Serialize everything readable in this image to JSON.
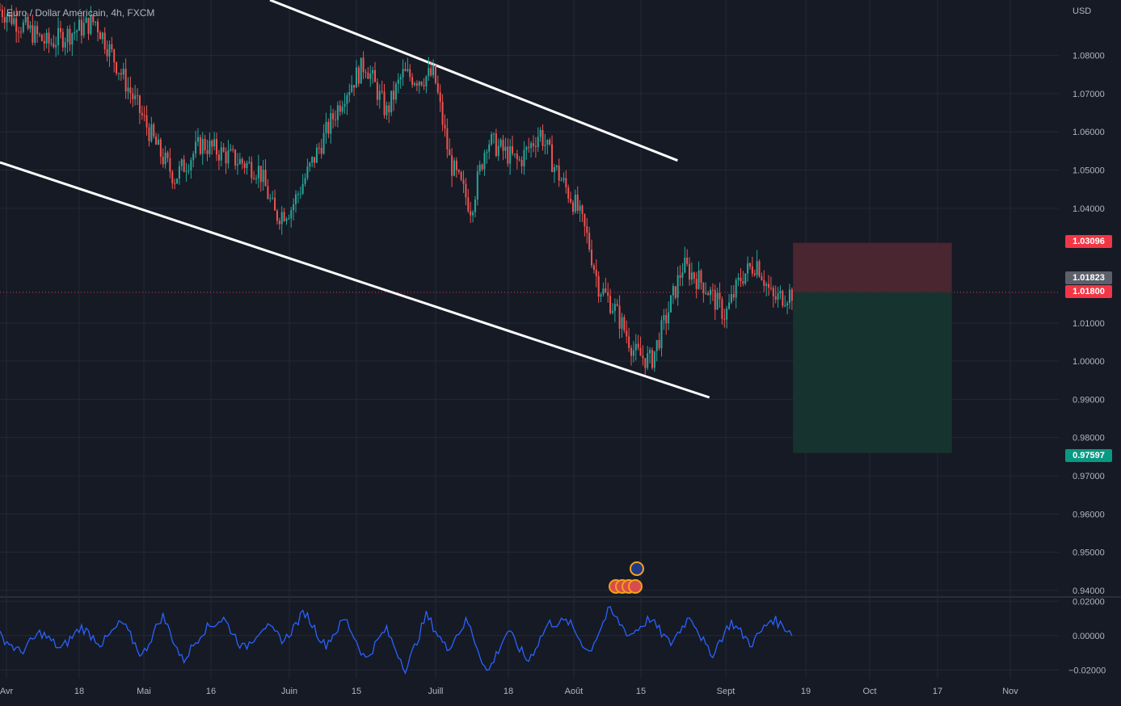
{
  "header": {
    "symbol": "Euro / Dollar Américain, 4h, FXCM",
    "currency": "USD"
  },
  "colors": {
    "background": "#161a25",
    "grid": "#232838",
    "up_candle": "#26a69a",
    "down_candle": "#ef5350",
    "trendline": "#ffffff",
    "stop_zone": "#4a2630",
    "target_zone": "#17332f",
    "oscillator": "#2962ff",
    "stop_label": "#f23645",
    "target_label": "#089981",
    "current_label": "#5d606b",
    "entry_label": "#f23645"
  },
  "price_axis": {
    "ticks": [
      "1.08000",
      "1.07000",
      "1.06000",
      "1.05000",
      "1.04000",
      "1.01000",
      "1.00000",
      "0.99000",
      "0.98000",
      "0.97000",
      "0.96000",
      "0.95000",
      "0.94000"
    ],
    "tick_values": [
      1.08,
      1.07,
      1.06,
      1.05,
      1.04,
      1.01,
      1.0,
      0.99,
      0.98,
      0.97,
      0.96,
      0.95,
      0.94
    ],
    "range": [
      0.9385,
      1.0945
    ]
  },
  "labels": {
    "stop": "1.03096",
    "current": "1.01823",
    "entry": "1.01800",
    "target": "0.97597"
  },
  "oscillator_axis": {
    "ticks": [
      "0.02000",
      "0.00000",
      "−0.02000"
    ],
    "tick_values": [
      0.02,
      0.0,
      -0.02
    ],
    "range": [
      -0.025,
      0.022
    ]
  },
  "time_axis": {
    "ticks": [
      "Avr",
      "18",
      "Mai",
      "16",
      "Juin",
      "15",
      "Juill",
      "18",
      "Août",
      "15",
      "Sept",
      "19",
      "Oct",
      "17",
      "Nov"
    ]
  },
  "chart_data": {
    "type": "candlestick",
    "title": "Euro / Dollar Américain, 4h, FXCM",
    "x_range": [
      "Avr",
      "Nov"
    ],
    "y_range": [
      0.9385,
      1.0945
    ],
    "price_path": [
      {
        "x": 0.0,
        "y": 1.092
      },
      {
        "x": 0.045,
        "y": 1.083
      },
      {
        "x": 0.09,
        "y": 1.089
      },
      {
        "x": 0.115,
        "y": 1.075
      },
      {
        "x": 0.15,
        "y": 1.055
      },
      {
        "x": 0.165,
        "y": 1.048
      },
      {
        "x": 0.19,
        "y": 1.057
      },
      {
        "x": 0.22,
        "y": 1.053
      },
      {
        "x": 0.245,
        "y": 1.05
      },
      {
        "x": 0.26,
        "y": 1.038
      },
      {
        "x": 0.275,
        "y": 1.04
      },
      {
        "x": 0.3,
        "y": 1.055
      },
      {
        "x": 0.325,
        "y": 1.07
      },
      {
        "x": 0.345,
        "y": 1.078
      },
      {
        "x": 0.365,
        "y": 1.065
      },
      {
        "x": 0.38,
        "y": 1.075
      },
      {
        "x": 0.395,
        "y": 1.074
      },
      {
        "x": 0.41,
        "y": 1.075
      },
      {
        "x": 0.425,
        "y": 1.052
      },
      {
        "x": 0.445,
        "y": 1.04
      },
      {
        "x": 0.46,
        "y": 1.058
      },
      {
        "x": 0.49,
        "y": 1.052
      },
      {
        "x": 0.51,
        "y": 1.06
      },
      {
        "x": 0.525,
        "y": 1.05
      },
      {
        "x": 0.545,
        "y": 1.04
      },
      {
        "x": 0.555,
        "y": 1.032
      },
      {
        "x": 0.565,
        "y": 1.02
      },
      {
        "x": 0.58,
        "y": 1.014
      },
      {
        "x": 0.6,
        "y": 1.002
      },
      {
        "x": 0.615,
        "y": 1.0
      },
      {
        "x": 0.63,
        "y": 1.012
      },
      {
        "x": 0.645,
        "y": 1.025
      },
      {
        "x": 0.665,
        "y": 1.02
      },
      {
        "x": 0.685,
        "y": 1.012
      },
      {
        "x": 0.7,
        "y": 1.022
      },
      {
        "x": 0.715,
        "y": 1.026
      },
      {
        "x": 0.73,
        "y": 1.016
      },
      {
        "x": 0.748,
        "y": 1.018
      }
    ],
    "upper_channel": [
      {
        "x": 0.255,
        "y": 1.0945
      },
      {
        "x": 0.64,
        "y": 1.0525
      }
    ],
    "lower_channel": [
      {
        "x": 0.0,
        "y": 1.052
      },
      {
        "x": 0.67,
        "y": 0.9905
      }
    ],
    "position": {
      "type": "short",
      "entry": 1.018,
      "stop": 1.03096,
      "target": 0.97597,
      "x_start": 0.749,
      "x_end": 0.899
    },
    "oscillator": {
      "values": [
        0.0,
        -0.01,
        0.002,
        -0.008,
        0.005,
        -0.005,
        0.008,
        -0.012,
        0.012,
        -0.015,
        0.003,
        0.01,
        -0.008,
        0.006,
        -0.003,
        0.014,
        -0.006,
        0.01,
        -0.014,
        0.004,
        -0.02,
        0.012,
        -0.008,
        0.009,
        -0.022,
        0.003,
        -0.015,
        0.007,
        0.008,
        -0.01,
        0.015,
        0.0,
        0.01,
        -0.005,
        0.012,
        -0.012,
        0.008,
        -0.005,
        0.01,
        0.002
      ]
    }
  }
}
